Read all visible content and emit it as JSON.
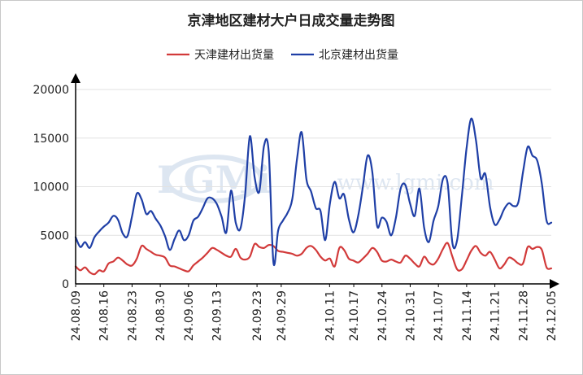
{
  "chart_data": {
    "type": "line",
    "title": "京津地区建材大户日成交量走势图",
    "xlabel": "",
    "ylabel": "",
    "ylim": [
      0,
      20000
    ],
    "yticks": [
      0,
      5000,
      10000,
      15000,
      20000
    ],
    "grid": true,
    "legend_position": "top-center",
    "x_start_date": "2024-08-09",
    "x_end_date": "2024-12-05",
    "xtick_labels": [
      "24.08.09",
      "24.08.16",
      "24.08.23",
      "24.08.30",
      "24.09.06",
      "24.09.13",
      "24.09.23",
      "24.09.29",
      "24.10.11",
      "24.10.17",
      "24.10.24",
      "24.10.31",
      "24.11.07",
      "24.11.14",
      "24.11.21",
      "24.11.28",
      "24.12.05"
    ],
    "series": [
      {
        "name": "天津建材出货量",
        "color": "#d23a3a",
        "values": [
          1800,
          1400,
          1700,
          1200,
          1000,
          1400,
          1300,
          2100,
          2300,
          2700,
          2400,
          2000,
          1900,
          2600,
          3900,
          3600,
          3300,
          3000,
          2900,
          2700,
          1900,
          1800,
          1600,
          1400,
          1300,
          1900,
          2300,
          2700,
          3200,
          3700,
          3500,
          3200,
          2900,
          2800,
          3600,
          2700,
          2500,
          2800,
          4100,
          3800,
          3700,
          4000,
          3900,
          3400,
          3300,
          3200,
          3100,
          2900,
          3100,
          3700,
          3900,
          3500,
          2800,
          2400,
          2600,
          1800,
          3700,
          3500,
          2600,
          2400,
          2200,
          2600,
          3100,
          3700,
          3300,
          2400,
          2300,
          2500,
          2300,
          2200,
          2900,
          2600,
          2100,
          1800,
          2800,
          2200,
          2000,
          2600,
          3600,
          4200,
          2800,
          1500,
          1500,
          2400,
          3400,
          3900,
          3200,
          2900,
          3300,
          2500,
          1600,
          2000,
          2700,
          2500,
          2100,
          2100,
          3800,
          3600,
          3800,
          3500,
          1700,
          1600
        ],
        "label": "天津建材出货量"
      },
      {
        "name": "北京建材出货量",
        "color": "#1f3fa6",
        "values": [
          4800,
          3800,
          4300,
          3700,
          4800,
          5400,
          5900,
          6300,
          7000,
          6600,
          5200,
          4900,
          7000,
          9300,
          8700,
          7200,
          7500,
          6700,
          6000,
          4900,
          3500,
          4600,
          5500,
          4500,
          5000,
          6500,
          6900,
          7800,
          8800,
          8800,
          8200,
          6900,
          5300,
          9600,
          6300,
          5700,
          9200,
          15200,
          11000,
          9500,
          14200,
          13600,
          2200,
          5500,
          6500,
          7300,
          8700,
          12800,
          15600,
          10800,
          9500,
          7800,
          7500,
          4500,
          8300,
          10500,
          8800,
          9200,
          6700,
          5300,
          7000,
          10000,
          13200,
          11500,
          6000,
          6800,
          6400,
          5000,
          6800,
          9800,
          10200,
          8300,
          7000,
          9800,
          5800,
          4300,
          6500,
          8000,
          10800,
          10300,
          4200,
          4500,
          9000,
          13900,
          17000,
          14800,
          10900,
          11300,
          7900,
          6100,
          6600,
          7700,
          8300,
          8000,
          8400,
          11500,
          14100,
          13200,
          12700,
          10300,
          6500,
          6300
        ],
        "label": "北京建材出货量"
      }
    ]
  },
  "watermark": {
    "logo_text": "LGMi",
    "url_text": "www.lgmi.com",
    "color": "#c3d3e6"
  },
  "colors": {
    "axis": "#000000",
    "grid": "#e2e2e2",
    "text": "#222222"
  }
}
